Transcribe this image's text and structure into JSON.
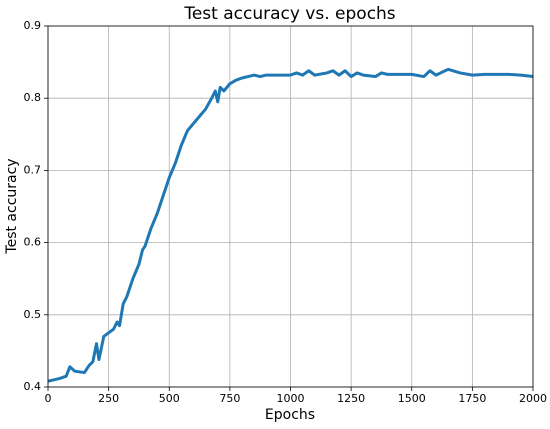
{
  "chart_data": {
    "type": "line",
    "title": "Test accuracy vs. epochs",
    "x_label": "Epochs",
    "y_label": "Test accuracy",
    "x": [
      0,
      25,
      50,
      75,
      90,
      110,
      150,
      170,
      185,
      200,
      210,
      230,
      250,
      270,
      285,
      295,
      310,
      325,
      350,
      375,
      390,
      400,
      425,
      450,
      475,
      500,
      525,
      550,
      575,
      600,
      625,
      650,
      675,
      690,
      700,
      710,
      725,
      750,
      775,
      800,
      825,
      850,
      875,
      900,
      950,
      1000,
      1025,
      1050,
      1075,
      1100,
      1150,
      1175,
      1200,
      1225,
      1250,
      1275,
      1300,
      1350,
      1375,
      1400,
      1450,
      1500,
      1550,
      1575,
      1600,
      1650,
      1700,
      1750,
      1800,
      1850,
      1900,
      1950,
      2000
    ],
    "values": [
      0.408,
      0.41,
      0.412,
      0.415,
      0.428,
      0.422,
      0.42,
      0.43,
      0.435,
      0.46,
      0.438,
      0.47,
      0.475,
      0.48,
      0.49,
      0.485,
      0.515,
      0.525,
      0.55,
      0.57,
      0.59,
      0.595,
      0.62,
      0.64,
      0.665,
      0.69,
      0.71,
      0.735,
      0.755,
      0.765,
      0.775,
      0.785,
      0.8,
      0.81,
      0.795,
      0.815,
      0.81,
      0.82,
      0.825,
      0.828,
      0.83,
      0.832,
      0.83,
      0.832,
      0.832,
      0.832,
      0.835,
      0.832,
      0.838,
      0.832,
      0.835,
      0.838,
      0.832,
      0.838,
      0.83,
      0.835,
      0.832,
      0.83,
      0.835,
      0.833,
      0.833,
      0.833,
      0.83,
      0.838,
      0.832,
      0.84,
      0.835,
      0.832,
      0.833,
      0.833,
      0.833,
      0.832,
      0.83
    ],
    "color": "#1f77b4",
    "xlim": [
      0,
      2000
    ],
    "xticks": [
      0,
      250,
      500,
      750,
      1000,
      1250,
      1500,
      1750,
      2000
    ],
    "ylim": [
      0.4,
      0.9
    ],
    "yticks": [
      0.4,
      0.5,
      0.6,
      0.7,
      0.8,
      0.9
    ],
    "grid": true
  }
}
